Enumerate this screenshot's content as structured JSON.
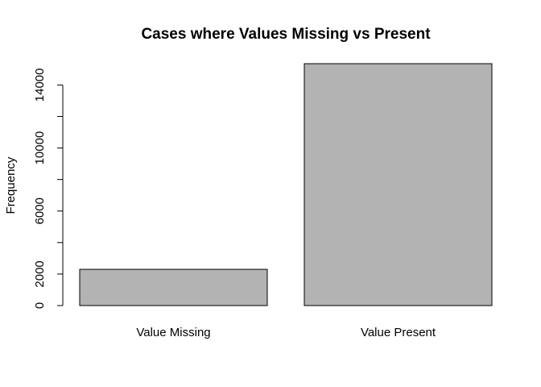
{
  "chart_data": {
    "type": "bar",
    "title": "Cases where Values Missing vs Present",
    "xlabel": "",
    "ylabel": "Frequency",
    "categories": [
      "Value Missing",
      "Value Present"
    ],
    "values": [
      2300,
      15350
    ],
    "ylim": [
      0,
      15350
    ],
    "yticks": [
      0,
      2000,
      4000,
      6000,
      8000,
      10000,
      12000,
      14000
    ],
    "ytick_labels": [
      "0",
      "2000",
      "",
      "6000",
      "",
      "10000",
      "",
      "14000"
    ],
    "bar_color": "#b3b3b3",
    "grid": false,
    "legend": "none"
  }
}
